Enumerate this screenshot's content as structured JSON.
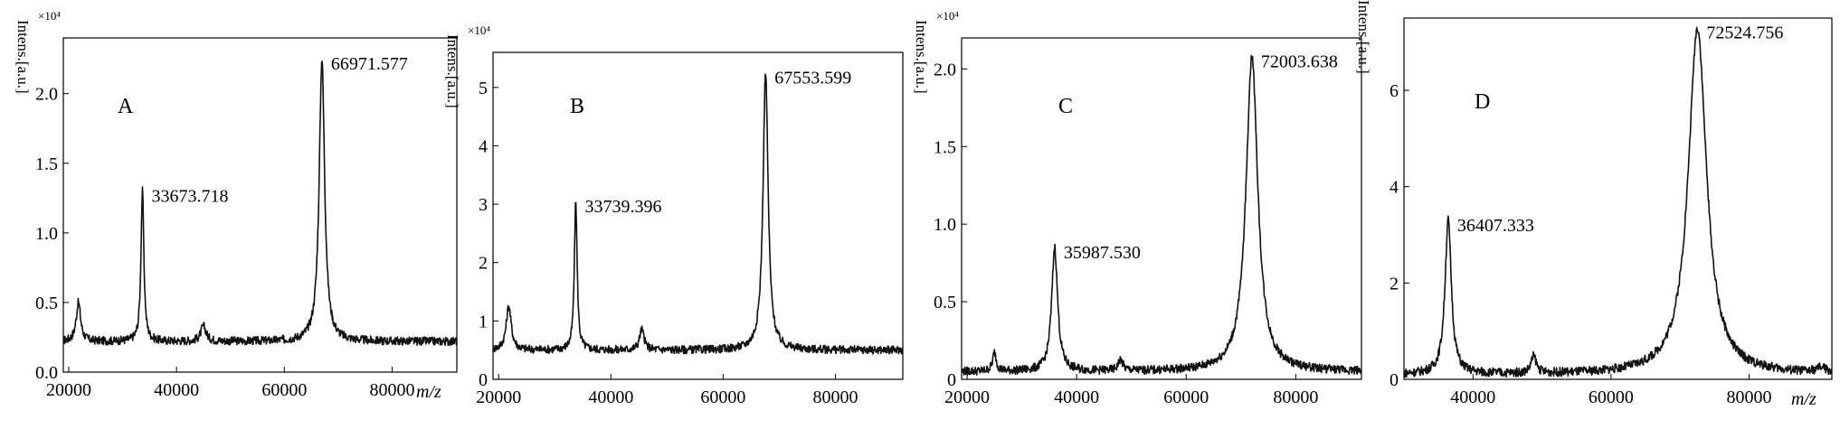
{
  "chart_data": [
    {
      "type": "line",
      "panel_label": "A",
      "ylabel": "Intens.[a.u.]",
      "yscale_label": "×10⁴",
      "xlabel": "m/z",
      "xlim": [
        19000,
        92000
      ],
      "ylim": [
        0,
        2.4
      ],
      "x_ticks": [
        20000,
        40000,
        60000,
        80000
      ],
      "x_tick_labels": [
        "20000",
        "40000",
        "60000",
        "80000"
      ],
      "y_ticks": [
        0.0,
        0.5,
        1.0,
        1.5,
        2.0
      ],
      "y_tick_labels": [
        "0.0",
        "0.5",
        "1.0",
        "1.5",
        "2.0"
      ],
      "baseline": 0.22,
      "peaks": [
        {
          "x": 21800,
          "y": 0.5,
          "w": 500
        },
        {
          "x": 33674,
          "y": 1.3,
          "w": 320,
          "label": "33673.718"
        },
        {
          "x": 45000,
          "y": 0.33,
          "w": 600
        },
        {
          "x": 66972,
          "y": 2.25,
          "w": 600,
          "label": "66971.577"
        }
      ],
      "series": [
        {
          "x": [
            19000,
            21800,
            30000,
            33674,
            45000,
            55000,
            66972,
            80000,
            92000
          ],
          "y": [
            0.25,
            0.5,
            0.35,
            1.3,
            0.33,
            0.24,
            2.25,
            0.28,
            0.17
          ]
        }
      ]
    },
    {
      "type": "line",
      "panel_label": "B",
      "ylabel": "Intens.[a.u.]",
      "yscale_label": "×10⁴",
      "xlabel": "",
      "xlim": [
        19000,
        92000
      ],
      "ylim": [
        0,
        5.6
      ],
      "x_ticks": [
        20000,
        40000,
        60000,
        80000
      ],
      "x_tick_labels": [
        "20000",
        "40000",
        "60000",
        "80000"
      ],
      "y_ticks": [
        0,
        1,
        2,
        3,
        4,
        5
      ],
      "y_tick_labels": [
        "0",
        "1",
        "2",
        "3",
        "4",
        "5"
      ],
      "baseline": 0.5,
      "peaks": [
        {
          "x": 21800,
          "y": 1.25,
          "w": 550
        },
        {
          "x": 33739,
          "y": 3.05,
          "w": 300,
          "label": "33739.396"
        },
        {
          "x": 45500,
          "y": 0.85,
          "w": 500
        },
        {
          "x": 67554,
          "y": 5.25,
          "w": 550,
          "label": "67553.599"
        }
      ],
      "series": [
        {
          "x": [
            19000,
            21800,
            30000,
            33739,
            45500,
            55000,
            67554,
            80000,
            92000
          ],
          "y": [
            0.4,
            1.25,
            0.7,
            3.05,
            0.85,
            0.55,
            5.25,
            0.5,
            0.3
          ]
        }
      ]
    },
    {
      "type": "line",
      "panel_label": "C",
      "ylabel": "Intens.[a.u.]",
      "yscale_label": "×10⁴",
      "xlabel": "",
      "xlim": [
        19000,
        92000
      ],
      "ylim": [
        0,
        2.2
      ],
      "x_ticks": [
        20000,
        40000,
        60000,
        80000
      ],
      "x_tick_labels": [
        "20000",
        "40000",
        "60000",
        "80000"
      ],
      "y_ticks": [
        0.0,
        0.5,
        1.0,
        1.5,
        2.0
      ],
      "y_tick_labels": [
        "0",
        "0.5",
        "1.0",
        "1.5",
        "2.0"
      ],
      "baseline": 0.05,
      "peaks": [
        {
          "x": 25000,
          "y": 0.17,
          "w": 400
        },
        {
          "x": 35988,
          "y": 0.85,
          "w": 650,
          "label": "35987.530"
        },
        {
          "x": 48000,
          "y": 0.12,
          "w": 500
        },
        {
          "x": 72004,
          "y": 2.08,
          "w": 1300,
          "label": "72003.638"
        }
      ],
      "series": [
        {
          "x": [
            19000,
            25000,
            30000,
            35988,
            48000,
            60000,
            72004,
            80000,
            92000
          ],
          "y": [
            0.06,
            0.17,
            0.07,
            0.85,
            0.12,
            0.08,
            2.08,
            0.07,
            0.05
          ]
        }
      ]
    },
    {
      "type": "line",
      "panel_label": "D",
      "ylabel": "Intens.[a.u.]",
      "yscale_label": "×10⁴",
      "xlabel": "m/z",
      "xlim": [
        30000,
        92000
      ],
      "ylim": [
        0,
        7.5
      ],
      "x_ticks": [
        40000,
        60000,
        80000
      ],
      "x_tick_labels": [
        "40000",
        "60000",
        "80000"
      ],
      "y_ticks": [
        0,
        2,
        4,
        6
      ],
      "y_tick_labels": [
        "0",
        "2",
        "4",
        "6"
      ],
      "baseline": 0.1,
      "peaks": [
        {
          "x": 36407,
          "y": 3.3,
          "w": 550,
          "label": "36407.333"
        },
        {
          "x": 48800,
          "y": 0.45,
          "w": 450
        },
        {
          "x": 72525,
          "y": 7.3,
          "w": 1600,
          "label": "72524.756"
        },
        {
          "x": 90500,
          "y": 0.2,
          "w": 800
        }
      ],
      "series": [
        {
          "x": [
            30000,
            36407,
            42000,
            48800,
            60000,
            72525,
            85000,
            90500,
            92000
          ],
          "y": [
            0.1,
            3.3,
            0.15,
            0.45,
            0.2,
            7.3,
            0.1,
            0.2,
            0.1
          ]
        }
      ]
    }
  ]
}
